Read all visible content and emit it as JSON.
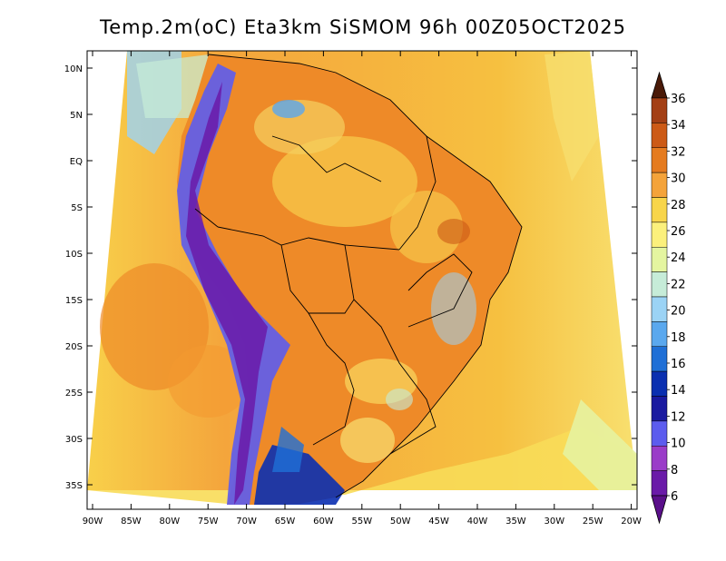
{
  "title": "Temp.2m(oC) Eta3km SiSMOM 96h 00Z05OCT2025",
  "map": {
    "lat_labels": [
      "10N",
      "5N",
      "EQ",
      "5S",
      "10S",
      "15S",
      "20S",
      "25S",
      "30S",
      "35S"
    ],
    "lon_labels": [
      "90W",
      "85W",
      "80W",
      "75W",
      "70W",
      "65W",
      "60W",
      "55W",
      "50W",
      "45W",
      "40W",
      "35W",
      "30W",
      "25W",
      "20W"
    ]
  },
  "colorbar": {
    "labels": [
      "36",
      "34",
      "32",
      "30",
      "28",
      "26",
      "24",
      "22",
      "20",
      "18",
      "16",
      "14",
      "12",
      "10",
      "8",
      "6"
    ],
    "colors": [
      "#7a2a0e",
      "#a33f14",
      "#cc5a16",
      "#e57b1f",
      "#f4a33a",
      "#f8d54a",
      "#fbf07c",
      "#e4f5a0",
      "#c6ecd8",
      "#9bd3f5",
      "#5aa8ee",
      "#1f6fd6",
      "#0a2fb0",
      "#1a1aa0",
      "#5c5cee",
      "#9a3cc8",
      "#6a1aa8"
    ],
    "top_arrow_color": "#4a1a08",
    "bottom_arrow_color": "#5a0f8a"
  }
}
